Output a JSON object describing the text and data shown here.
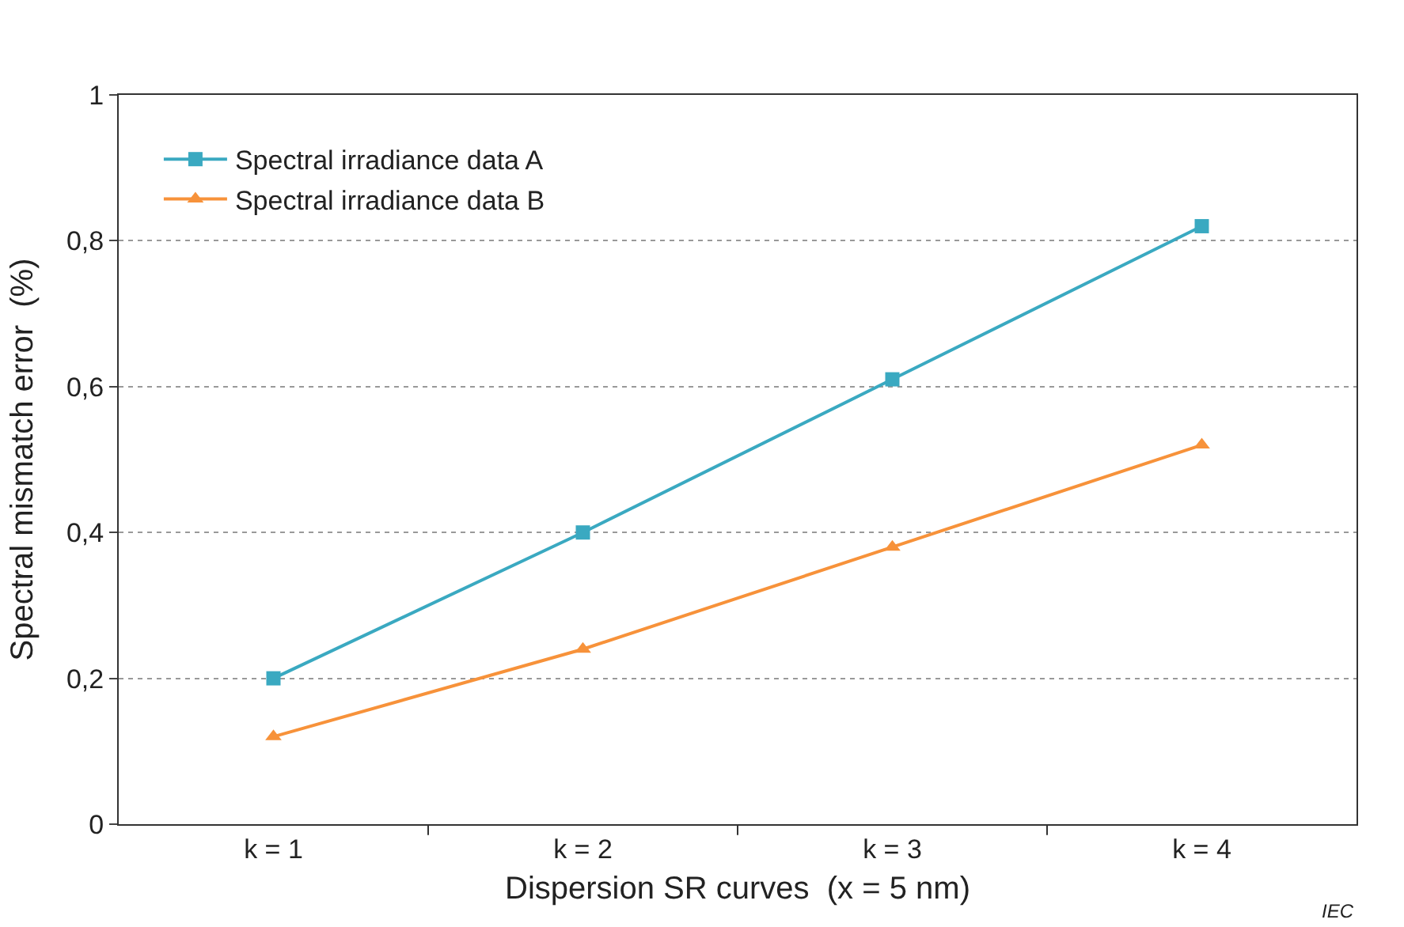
{
  "chart_data": {
    "type": "line",
    "xlabel": "Dispersion SR curves  (x = 5 nm)",
    "ylabel": "Spectral mismatch error  (%)",
    "categories": [
      "k = 1",
      "k = 2",
      "k = 3",
      "k = 4"
    ],
    "series": [
      {
        "name": "Spectral irradiance data A",
        "color": "#3aa9c1",
        "marker": "square",
        "values": [
          0.2,
          0.4,
          0.61,
          0.82
        ]
      },
      {
        "name": "Spectral irradiance data B",
        "color": "#f7923a",
        "marker": "triangle",
        "values": [
          0.12,
          0.24,
          0.38,
          0.52
        ]
      }
    ],
    "ylim": [
      0,
      1
    ],
    "yticks": [
      0,
      {
        "value": 0.2,
        "label": "0,2"
      },
      {
        "value": 0.4,
        "label": "0,4"
      },
      {
        "value": 0.6,
        "label": "0,6"
      },
      {
        "value": 0.8,
        "label": "0,8"
      },
      1
    ],
    "grid": "y",
    "legend": "top left",
    "line_style": "solid",
    "annotations": [
      "IEC"
    ]
  }
}
